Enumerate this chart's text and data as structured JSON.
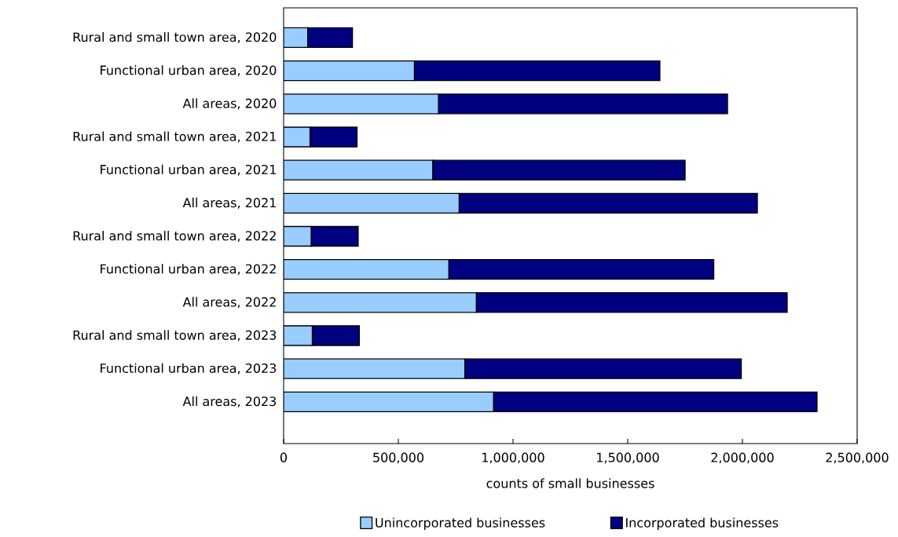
{
  "chart_data": {
    "type": "bar",
    "orientation": "horizontal",
    "stacked": true,
    "xlabel": "counts of small businesses",
    "categories": [
      "Rural and small town area, 2020",
      "Functional urban area, 2020",
      "All areas, 2020",
      "Rural and small town area, 2021",
      "Functional urban area, 2021",
      "All areas, 2021",
      "Rural and small town area, 2022",
      "Functional urban area, 2022",
      "All areas, 2022",
      "Rural and small town area, 2023",
      "Functional urban area, 2023",
      "All areas, 2023"
    ],
    "series": [
      {
        "name": "Unincorporated businesses",
        "color": "#99ccff",
        "values": [
          105000,
          570000,
          675000,
          115000,
          650000,
          765000,
          120000,
          720000,
          840000,
          125000,
          790000,
          915000
        ]
      },
      {
        "name": "Incorporated businesses",
        "color": "#000080",
        "values": [
          195000,
          1070000,
          1260000,
          205000,
          1100000,
          1300000,
          205000,
          1155000,
          1355000,
          205000,
          1205000,
          1410000
        ]
      }
    ],
    "xlim": [
      0,
      2500000
    ],
    "xticks": [
      0,
      {
        "value": 500000,
        "label": "500,000"
      },
      {
        "value": 1000000,
        "label": "1,000,000"
      },
      {
        "value": 1500000,
        "label": "1,500,000"
      },
      {
        "value": 2000000,
        "label": "2,000,000"
      },
      {
        "value": 2500000,
        "label": "2,500,000"
      }
    ],
    "grid": false,
    "legend": "bottom"
  }
}
